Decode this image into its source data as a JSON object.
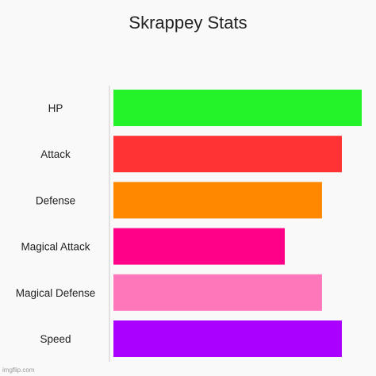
{
  "chart_data": {
    "type": "bar",
    "orientation": "horizontal",
    "title": "Skrappey Stats",
    "xlabel": "",
    "ylabel": "",
    "categories": [
      "HP",
      "Attack",
      "Defense",
      "Magical Attack",
      "Magical Defense",
      "Speed"
    ],
    "values": [
      100,
      92,
      84,
      69,
      84,
      92
    ],
    "colors": [
      "#25f32a",
      "#ff3333",
      "#ff8800",
      "#ff0088",
      "#ff77bb",
      "#aa00ff"
    ],
    "xlim": [
      0,
      100
    ],
    "grid": false,
    "legend": "none"
  },
  "watermark": "imgflip.com"
}
